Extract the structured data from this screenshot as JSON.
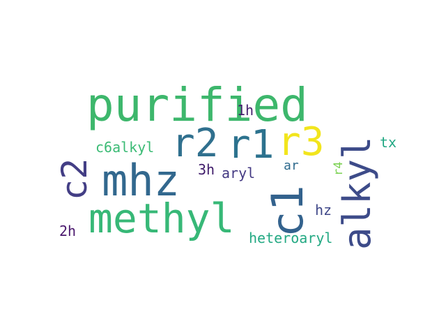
{
  "words": [
    {
      "text": "purified",
      "color": "#3db76c"
    },
    {
      "text": "mhz",
      "color": "#32688e"
    },
    {
      "text": "methyl",
      "color": "#37b877"
    },
    {
      "text": "r2",
      "color": "#30708e"
    },
    {
      "text": "r1",
      "color": "#2c728e"
    },
    {
      "text": "r3",
      "color": "#f2e51d"
    },
    {
      "text": "c1",
      "color": "#33628d"
    },
    {
      "text": "alkyl",
      "color": "#3d4b89"
    },
    {
      "text": "c2",
      "color": "#433e85"
    },
    {
      "text": "1h",
      "color": "#44206d"
    },
    {
      "text": "c6alkyl",
      "color": "#3bbb75"
    },
    {
      "text": "3h",
      "color": "#3f1b6a"
    },
    {
      "text": "aryl",
      "color": "#443a83"
    },
    {
      "text": "ar",
      "color": "#2f6b8e"
    },
    {
      "text": "r4",
      "color": "#7ad151"
    },
    {
      "text": "tx",
      "color": "#22a884"
    },
    {
      "text": "hz",
      "color": "#3f4788"
    },
    {
      "text": "2h",
      "color": "#4a186d"
    },
    {
      "text": "heteroaryl",
      "color": "#23a983"
    }
  ]
}
